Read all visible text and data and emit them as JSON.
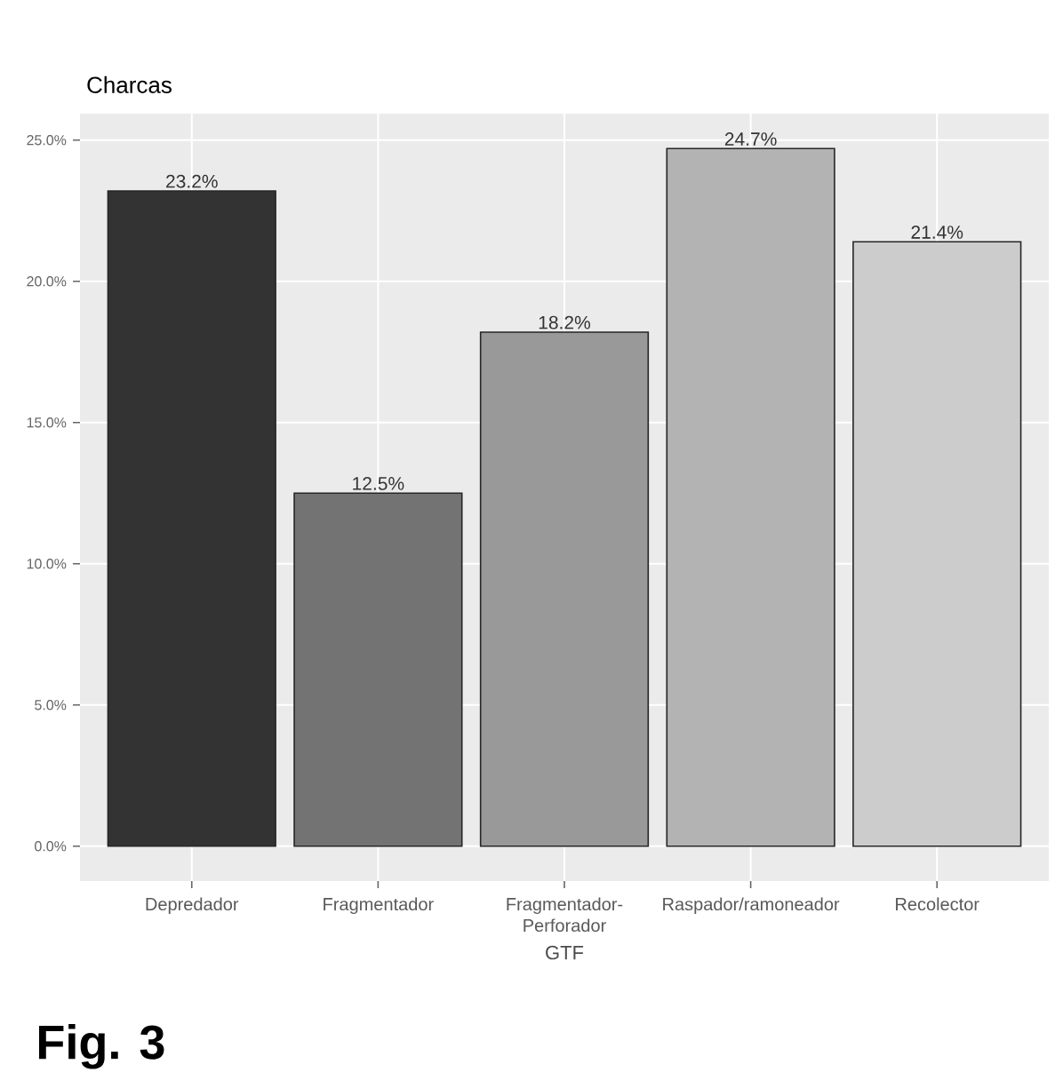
{
  "chart_data": {
    "type": "bar",
    "title": "Charcas",
    "xlabel": "GTF",
    "categories": [
      "Depredador",
      "Fragmentador",
      "Fragmentador-Perforador",
      "Raspador/ramoneador",
      "Recolector"
    ],
    "values": [
      23.2,
      12.5,
      18.2,
      24.7,
      21.4
    ],
    "value_labels": [
      "23.2%",
      "12.5%",
      "18.2%",
      "24.7%",
      "21.4%"
    ],
    "colors": [
      "#333333",
      "#737373",
      "#999999",
      "#b3b3b3",
      "#cccccc"
    ],
    "ylim": [
      -1.235,
      25.935
    ],
    "yticks": [
      {
        "value": 0,
        "label": "0.0%"
      },
      {
        "value": 5,
        "label": "5.0%"
      },
      {
        "value": 10,
        "label": "10.0%"
      },
      {
        "value": 15,
        "label": "15.0%"
      },
      {
        "value": 20,
        "label": "20.0%"
      },
      {
        "value": 25,
        "label": "25.0%"
      }
    ],
    "grid": true,
    "annotations": [
      "**Fig. 3**"
    ]
  }
}
